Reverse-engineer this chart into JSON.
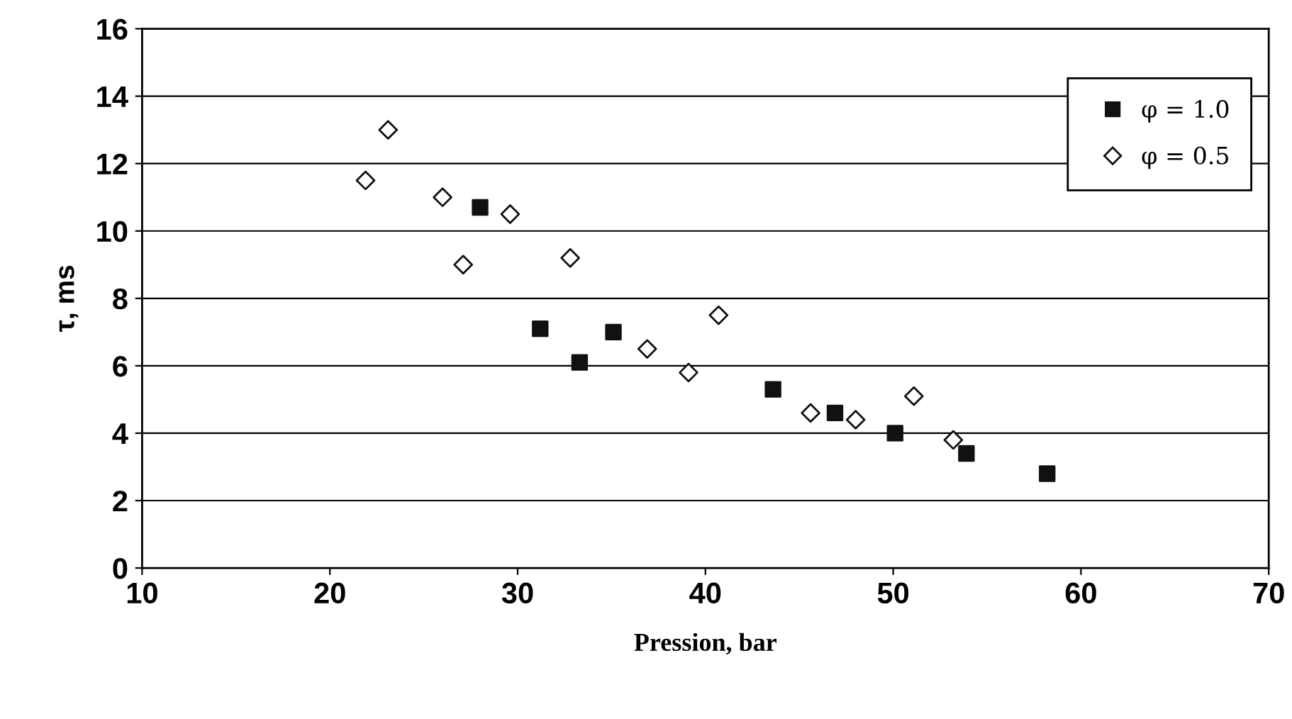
{
  "chart_data": {
    "type": "scatter",
    "xlabel": "Pression, bar",
    "ylabel": "τ, ms",
    "xlim": [
      10,
      70
    ],
    "xticks": [
      10,
      20,
      30,
      40,
      50,
      60,
      70
    ],
    "ylim": [
      0,
      16
    ],
    "yticks": [
      0,
      2,
      4,
      6,
      8,
      10,
      12,
      14,
      16
    ],
    "grid": "y",
    "legend": "top right",
    "series": [
      {
        "name": "φ = 1.0",
        "color": "#111111",
        "marker": "square",
        "x": [
          28.0,
          31.2,
          33.3,
          35.1,
          43.6,
          46.9,
          50.1,
          53.9,
          58.2
        ],
        "values": [
          10.7,
          7.1,
          6.1,
          7.0,
          5.3,
          4.6,
          4.0,
          3.4,
          2.8
        ]
      },
      {
        "name": "φ = 0.5",
        "color": "#111111",
        "marker": "diamond",
        "x": [
          21.9,
          23.1,
          26.0,
          27.1,
          29.6,
          32.8,
          36.9,
          39.1,
          40.7,
          45.6,
          48.0,
          51.1,
          53.2
        ],
        "values": [
          11.5,
          13.0,
          11.0,
          9.0,
          10.5,
          9.2,
          6.5,
          5.8,
          7.5,
          4.6,
          4.4,
          5.1,
          3.8
        ]
      }
    ]
  }
}
